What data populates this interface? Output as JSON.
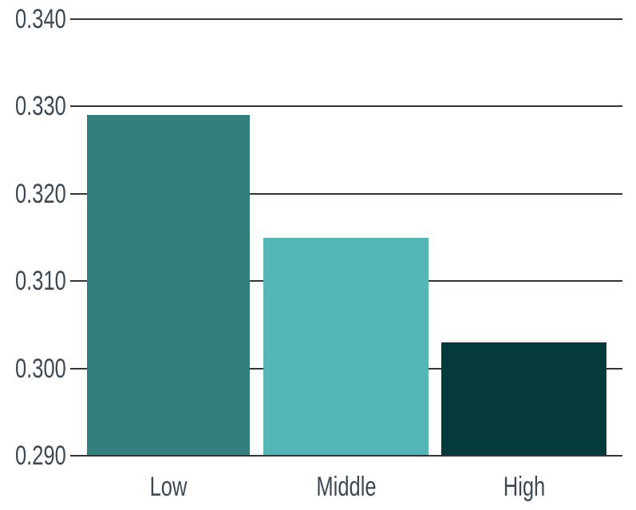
{
  "chart_data": {
    "type": "bar",
    "categories": [
      "Low",
      "Middle",
      "High"
    ],
    "values": [
      0.329,
      0.315,
      0.303
    ],
    "title": "",
    "xlabel": "",
    "ylabel": "",
    "ylim": [
      0.29,
      0.34
    ],
    "ytick_step": 0.01,
    "ytick_labels_top_to_bottom": [
      "0.340",
      "0.330",
      "0.320",
      "0.310",
      "0.300",
      "0.290"
    ],
    "grid": true,
    "legend": false,
    "bar_colors": [
      "#337F7D",
      "#54B6B7",
      "#043A3C"
    ],
    "gridline_color": "#30363B",
    "axis_text_color": "#3C4953",
    "background_color": "#FFFFFF"
  }
}
